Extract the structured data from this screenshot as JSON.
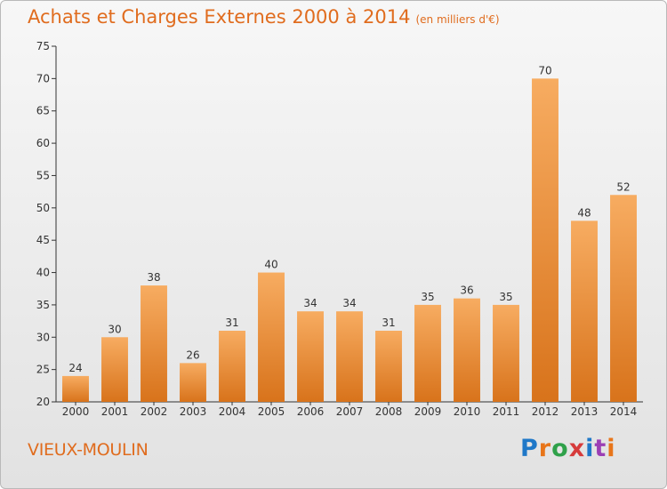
{
  "header": {
    "title": "Achats et Charges Externes 2000 à 2014",
    "subtitle": "(en milliers d'€)"
  },
  "footer": {
    "commune": "VIEUX-MOULIN",
    "logo_text": "Proxiti",
    "logo_colors": [
      "#1f78c8",
      "#e8751a",
      "#2fa14a",
      "#d63b3b",
      "#1f78c8",
      "#9b3fb5",
      "#e8751a"
    ]
  },
  "colors": {
    "accent": "#e06c1e",
    "bar_light": "#f7ac61",
    "bar_dark": "#d8731b"
  },
  "chart_data": {
    "type": "bar",
    "title": "Achats et Charges Externes 2000 à 2014",
    "subtitle": "(en milliers d'€)",
    "categories": [
      "2000",
      "2001",
      "2002",
      "2003",
      "2004",
      "2005",
      "2006",
      "2007",
      "2008",
      "2009",
      "2010",
      "2011",
      "2012",
      "2013",
      "2014"
    ],
    "values": [
      24,
      30,
      38,
      26,
      31,
      40,
      34,
      34,
      31,
      35,
      36,
      35,
      70,
      48,
      52
    ],
    "ylim": [
      20,
      75
    ],
    "yticks": [
      20,
      25,
      30,
      35,
      40,
      45,
      50,
      55,
      60,
      65,
      70,
      75
    ],
    "grid": false,
    "xlabel": "",
    "ylabel": ""
  }
}
